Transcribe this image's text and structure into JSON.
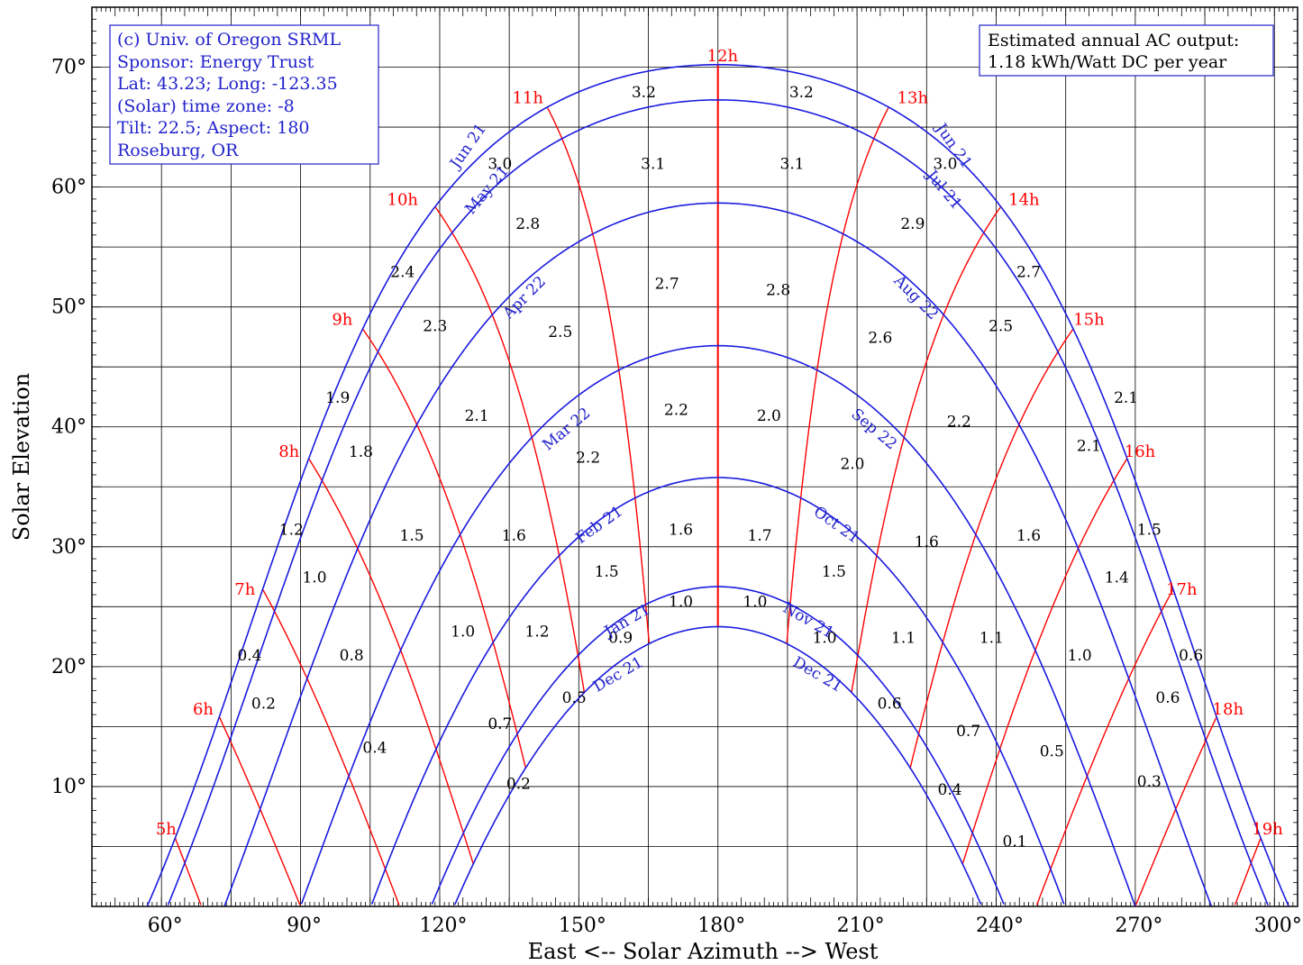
{
  "chart_data": {
    "type": "line",
    "xlabel": "East <-- Solar Azimuth --> West",
    "ylabel": "Solar Elevation",
    "xlim": [
      45,
      305
    ],
    "ylim": [
      0,
      75
    ],
    "x_ticks": [
      {
        "value": 60,
        "label": "60°"
      },
      {
        "value": 90,
        "label": "90°"
      },
      {
        "value": 120,
        "label": "120°"
      },
      {
        "value": 150,
        "label": "150°"
      },
      {
        "value": 180,
        "label": "180°"
      },
      {
        "value": 210,
        "label": "210°"
      },
      {
        "value": 240,
        "label": "240°"
      },
      {
        "value": 270,
        "label": "270°"
      },
      {
        "value": 300,
        "label": "300°"
      }
    ],
    "y_ticks": [
      {
        "value": 10,
        "label": "10°"
      },
      {
        "value": 20,
        "label": "20°"
      },
      {
        "value": 30,
        "label": "30°"
      },
      {
        "value": 40,
        "label": "40°"
      },
      {
        "value": 50,
        "label": "50°"
      },
      {
        "value": 60,
        "label": "60°"
      },
      {
        "value": 70,
        "label": "70°"
      }
    ],
    "grid": true,
    "info_box": [
      "(c) Univ. of Oregon SRML",
      "Sponsor: Energy Trust",
      "Lat: 43.23; Long: -123.35",
      "(Solar) time zone: -8",
      "Tilt: 22.5; Aspect: 180",
      "Roseburg, OR"
    ],
    "output_box": [
      "Estimated annual AC output:",
      "1.18 kWh/Watt DC per year"
    ],
    "sun_paths": [
      {
        "name": "Jun 21",
        "name2": "Jun 21",
        "decl": 23.44,
        "label_pos": [
          {
            "az": 127,
            "el": 63.2,
            "rot": -55
          },
          {
            "az": 230,
            "el": 63.2,
            "rot": 55
          }
        ]
      },
      {
        "name": "May 21",
        "name2": "Jul 21",
        "decl": 20.5,
        "label_pos": [
          {
            "az": 131,
            "el": 59.5,
            "rot": -50
          },
          {
            "az": 228,
            "el": 59.5,
            "rot": 50
          }
        ]
      },
      {
        "name": "Apr 22",
        "name2": "Aug 22",
        "decl": 11.9,
        "label_pos": [
          {
            "az": 139,
            "el": 50.5,
            "rot": -45
          },
          {
            "az": 222,
            "el": 50.5,
            "rot": 45
          }
        ]
      },
      {
        "name": "Mar 22",
        "name2": "Sep 22",
        "decl": 0.0,
        "label_pos": [
          {
            "az": 148,
            "el": 39.5,
            "rot": -40
          },
          {
            "az": 213,
            "el": 39.5,
            "rot": 40
          }
        ]
      },
      {
        "name": "Feb 21",
        "name2": "Oct 21",
        "decl": -11.0,
        "label_pos": [
          {
            "az": 155,
            "el": 31.5,
            "rot": -35
          },
          {
            "az": 205,
            "el": 31.5,
            "rot": 35
          }
        ]
      },
      {
        "name": "Jan 21",
        "name2": "Nov 21",
        "decl": -20.1,
        "label_pos": [
          {
            "az": 161,
            "el": 23.5,
            "rot": -30
          },
          {
            "az": 199,
            "el": 23.5,
            "rot": 30
          }
        ]
      },
      {
        "name": "Dec 21",
        "name2": "Dec 21",
        "decl": -23.44,
        "label_pos": [
          {
            "az": 159,
            "el": 19.0,
            "rot": -30
          },
          {
            "az": 201,
            "el": 19.0,
            "rot": 30
          }
        ]
      }
    ],
    "hour_labels": [
      {
        "h": 5,
        "label": "5h",
        "az": 61,
        "el": 6.0
      },
      {
        "h": 6,
        "label": "6h",
        "az": 69,
        "el": 16.0
      },
      {
        "h": 7,
        "label": "7h",
        "az": 78,
        "el": 26.0
      },
      {
        "h": 8,
        "label": "8h",
        "az": 87.5,
        "el": 37.5
      },
      {
        "h": 9,
        "label": "9h",
        "az": 99,
        "el": 48.5
      },
      {
        "h": 10,
        "label": "10h",
        "az": 112,
        "el": 58.5
      },
      {
        "h": 11,
        "label": "11h",
        "az": 139,
        "el": 67.0
      },
      {
        "h": 12,
        "label": "12h",
        "az": 181,
        "el": 70.5
      },
      {
        "h": 13,
        "label": "13h",
        "az": 222,
        "el": 67.0
      },
      {
        "h": 14,
        "label": "14h",
        "az": 246,
        "el": 58.5
      },
      {
        "h": 15,
        "label": "15h",
        "az": 260,
        "el": 48.5
      },
      {
        "h": 16,
        "label": "16h",
        "az": 271,
        "el": 37.5
      },
      {
        "h": 17,
        "label": "17h",
        "az": 280,
        "el": 26.0
      },
      {
        "h": 18,
        "label": "18h",
        "az": 290,
        "el": 16.0
      },
      {
        "h": 19,
        "label": "19h",
        "az": 298.5,
        "el": 6.0
      }
    ],
    "cell_values": [
      {
        "t": "3.2",
        "az": 164,
        "el": 67.5
      },
      {
        "t": "3.2",
        "az": 198,
        "el": 67.5
      },
      {
        "t": "3.0",
        "az": 133,
        "el": 61.5
      },
      {
        "t": "3.1",
        "az": 166,
        "el": 61.5
      },
      {
        "t": "3.1",
        "az": 196,
        "el": 61.5
      },
      {
        "t": "3.0",
        "az": 229,
        "el": 61.5
      },
      {
        "t": "2.8",
        "az": 139,
        "el": 56.5
      },
      {
        "t": "2.9",
        "az": 222,
        "el": 56.5
      },
      {
        "t": "2.4",
        "az": 112,
        "el": 52.5
      },
      {
        "t": "2.7",
        "az": 169,
        "el": 51.5
      },
      {
        "t": "2.8",
        "az": 193,
        "el": 51.0
      },
      {
        "t": "2.7",
        "az": 247,
        "el": 52.5
      },
      {
        "t": "2.3",
        "az": 119,
        "el": 48.0
      },
      {
        "t": "2.5",
        "az": 146,
        "el": 47.5
      },
      {
        "t": "2.6",
        "az": 215,
        "el": 47.0
      },
      {
        "t": "2.5",
        "az": 241,
        "el": 48.0
      },
      {
        "t": "1.9",
        "az": 98,
        "el": 42.0
      },
      {
        "t": "2.1",
        "az": 268,
        "el": 42.0
      },
      {
        "t": "2.1",
        "az": 128,
        "el": 40.5
      },
      {
        "t": "2.2",
        "az": 171,
        "el": 41.0
      },
      {
        "t": "2.0",
        "az": 191,
        "el": 40.5
      },
      {
        "t": "2.2",
        "az": 232,
        "el": 40.0
      },
      {
        "t": "1.8",
        "az": 103,
        "el": 37.5
      },
      {
        "t": "2.1",
        "az": 260,
        "el": 38.0
      },
      {
        "t": "2.2",
        "az": 152,
        "el": 37.0
      },
      {
        "t": "2.0",
        "az": 209,
        "el": 36.5
      },
      {
        "t": "1.2",
        "az": 88,
        "el": 31.0
      },
      {
        "t": "1.5",
        "az": 114,
        "el": 30.5
      },
      {
        "t": "1.6",
        "az": 136,
        "el": 30.5
      },
      {
        "t": "1.6",
        "az": 172,
        "el": 31.0
      },
      {
        "t": "1.7",
        "az": 189,
        "el": 30.5
      },
      {
        "t": "1.6",
        "az": 225,
        "el": 30.0
      },
      {
        "t": "1.6",
        "az": 247,
        "el": 30.5
      },
      {
        "t": "1.5",
        "az": 273,
        "el": 31.0
      },
      {
        "t": "1.5",
        "az": 156,
        "el": 27.5
      },
      {
        "t": "1.5",
        "az": 205,
        "el": 27.5
      },
      {
        "t": "1.0",
        "az": 93,
        "el": 27.0
      },
      {
        "t": "1.4",
        "az": 266,
        "el": 27.0
      },
      {
        "t": "1.0",
        "az": 172,
        "el": 25.0
      },
      {
        "t": "1.0",
        "az": 188,
        "el": 25.0
      },
      {
        "t": "1.0",
        "az": 125,
        "el": 22.5
      },
      {
        "t": "1.2",
        "az": 141,
        "el": 22.5
      },
      {
        "t": "0.9",
        "az": 159,
        "el": 22.0
      },
      {
        "t": "1.0",
        "az": 203,
        "el": 22.0
      },
      {
        "t": "1.1",
        "az": 220,
        "el": 22.0
      },
      {
        "t": "1.1",
        "az": 239,
        "el": 22.0
      },
      {
        "t": "0.4",
        "az": 79,
        "el": 20.5
      },
      {
        "t": "0.8",
        "az": 101,
        "el": 20.5
      },
      {
        "t": "1.0",
        "az": 258,
        "el": 20.5
      },
      {
        "t": "0.6",
        "az": 282,
        "el": 20.5
      },
      {
        "t": "0.2",
        "az": 82,
        "el": 16.5
      },
      {
        "t": "0.5",
        "az": 149,
        "el": 17.0
      },
      {
        "t": "0.6",
        "az": 217,
        "el": 16.5
      },
      {
        "t": "0.6",
        "az": 277,
        "el": 17.0
      },
      {
        "t": "0.7",
        "az": 133,
        "el": 14.8
      },
      {
        "t": "0.7",
        "az": 234,
        "el": 14.2
      },
      {
        "t": "0.4",
        "az": 106,
        "el": 12.8
      },
      {
        "t": "0.5",
        "az": 252,
        "el": 12.5
      },
      {
        "t": "0.2",
        "az": 137,
        "el": 9.8
      },
      {
        "t": "0.4",
        "az": 230,
        "el": 9.3
      },
      {
        "t": "0.3",
        "az": 273,
        "el": 10.0
      },
      {
        "t": "0.1",
        "az": 244,
        "el": 5.0
      }
    ]
  }
}
